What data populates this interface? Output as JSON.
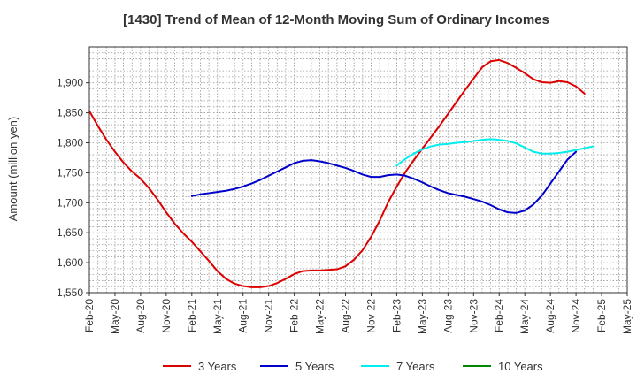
{
  "chart_data": {
    "type": "line",
    "title": "[1430]  Trend of Mean of 12-Month Moving Sum of Ordinary Incomes",
    "xlabel": "",
    "ylabel": "Amount (million yen)",
    "ylim": [
      1550,
      1960
    ],
    "yticks": [
      1550,
      1600,
      1650,
      1700,
      1750,
      1800,
      1850,
      1900
    ],
    "ytick_labels": [
      "1,550",
      "1,600",
      "1,650",
      "1,700",
      "1,750",
      "1,800",
      "1,850",
      "1,900"
    ],
    "x_start": "Feb-20",
    "x_months": 63,
    "xtick_labels": [
      "Feb-20",
      "May-20",
      "Aug-20",
      "Nov-20",
      "Feb-21",
      "May-21",
      "Aug-21",
      "Nov-21",
      "Feb-22",
      "May-22",
      "Aug-22",
      "Nov-22",
      "Feb-23",
      "May-23",
      "Aug-23",
      "Nov-23",
      "Feb-24",
      "May-24",
      "Aug-24",
      "Nov-24",
      "Feb-25",
      "May-25"
    ],
    "grid": true,
    "legend_position": "bottom",
    "series": [
      {
        "name": "3 Years",
        "color": "#dd0000",
        "start_month": 0,
        "values": [
          1853,
          1828,
          1805,
          1785,
          1767,
          1752,
          1740,
          1724,
          1705,
          1684,
          1665,
          1649,
          1635,
          1619,
          1603,
          1586,
          1573,
          1565,
          1561,
          1559,
          1559,
          1561,
          1566,
          1573,
          1581,
          1586,
          1587,
          1587,
          1588,
          1589,
          1594,
          1605,
          1621,
          1643,
          1670,
          1701,
          1727,
          1751,
          1771,
          1790,
          1809,
          1828,
          1848,
          1868,
          1888,
          1907,
          1926,
          1936,
          1938,
          1933,
          1925,
          1916,
          1906,
          1901,
          1900,
          1903,
          1901,
          1894,
          1882
        ]
      },
      {
        "name": "5 Years",
        "color": "#0000cc",
        "start_month": 12,
        "values": [
          1711,
          1714,
          1716,
          1718,
          1720,
          1723,
          1727,
          1732,
          1738,
          1745,
          1752,
          1759,
          1766,
          1770,
          1771,
          1769,
          1766,
          1762,
          1758,
          1753,
          1747,
          1743,
          1743,
          1746,
          1747,
          1745,
          1740,
          1734,
          1727,
          1721,
          1716,
          1713,
          1710,
          1706,
          1702,
          1696,
          1689,
          1684,
          1683,
          1687,
          1697,
          1712,
          1732,
          1752,
          1772,
          1785
        ]
      },
      {
        "name": "7 Years",
        "color": "#00eeee",
        "start_month": 36,
        "values": [
          1762,
          1773,
          1782,
          1789,
          1794,
          1797,
          1798,
          1800,
          1801,
          1803,
          1805,
          1806,
          1805,
          1803,
          1799,
          1792,
          1785,
          1782,
          1782,
          1783,
          1785,
          1788,
          1791,
          1794
        ]
      },
      {
        "name": "10 Years",
        "color": "#008800",
        "start_month": 63,
        "values": []
      }
    ]
  }
}
